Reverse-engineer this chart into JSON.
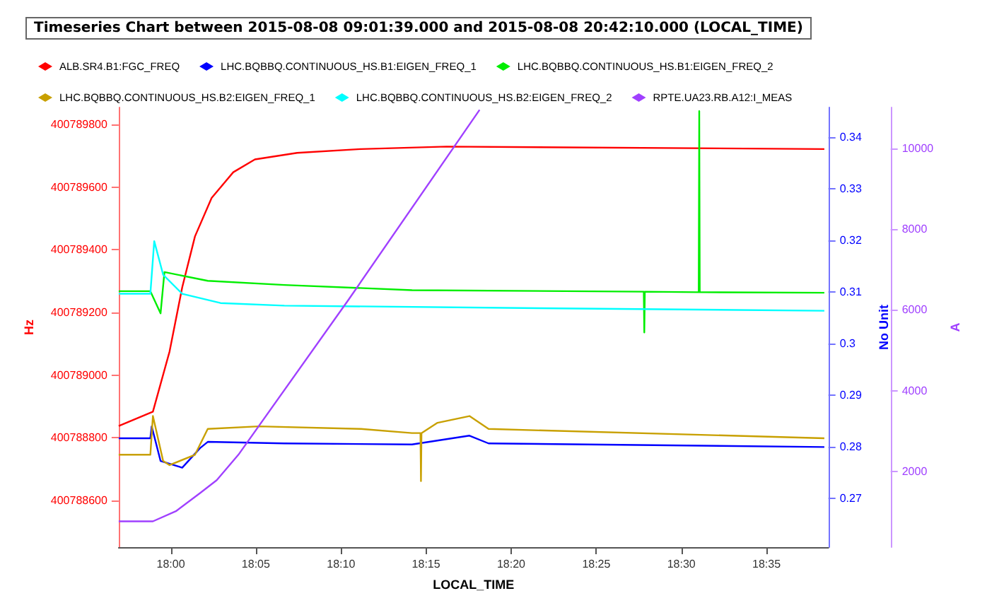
{
  "chart_data": {
    "type": "line",
    "title": "Timeseries Chart between 2015-08-08 09:01:39.000 and 2015-08-08 20:42:10.000 (LOCAL_TIME)",
    "xlabel": "LOCAL_TIME",
    "ylabel": "Hz",
    "y2label": "No Unit",
    "y3label": "A",
    "xlim": [
      17.949,
      18.644
    ],
    "xticks": [
      {
        "value": 18,
        "label": "18:00"
      },
      {
        "value": 18.0833,
        "label": "18:05"
      },
      {
        "value": 18.1667,
        "label": "18:10"
      },
      {
        "value": 18.25,
        "label": "18:15"
      },
      {
        "value": 18.3333,
        "label": "18:20"
      },
      {
        "value": 18.4167,
        "label": "18:25"
      },
      {
        "value": 18.5,
        "label": "18:30"
      },
      {
        "value": 18.5833,
        "label": "18:35"
      }
    ],
    "ylim": [
      400788450,
      400789855
    ],
    "yticks": [
      400788600,
      400788800,
      400789000,
      400789200,
      400789400,
      400789600,
      400789800
    ],
    "y2lim": [
      0.2605,
      0.3457
    ],
    "y2ticks": [
      0.27,
      0.28,
      0.29,
      0.3,
      0.31,
      0.32,
      0.33,
      0.34
    ],
    "y3lim": [
      120,
      11020
    ],
    "y3ticks": [
      2000,
      4000,
      6000,
      8000,
      10000
    ],
    "grid": false,
    "legend": "top",
    "marker": "none",
    "line_style": "solid",
    "series": [
      {
        "name": "ALB.SR4.B1:FGC_FREQ",
        "color": "#ff0000",
        "axis": "y",
        "x": [
          17.949,
          17.9825,
          17.9988,
          18.0112,
          18.0237,
          18.04,
          18.0612,
          18.0824,
          18.1237,
          18.1862,
          18.27,
          18.64
        ],
        "values": [
          400788837,
          400788883,
          400789075,
          400789280,
          400789443,
          400789566,
          400789648,
          400789689,
          400789710,
          400789722,
          400789730,
          400789722
        ]
      },
      {
        "name": "LHC.BQBBQ.CONTINUOUS_HS.B1:EIGEN_FREQ_1",
        "color": "#0000ff",
        "axis": "y2",
        "x": [
          17.949,
          17.98,
          17.9813,
          17.99,
          18.0112,
          18.0287,
          18.0362,
          18.1112,
          18.2362,
          18.2925,
          18.3112,
          18.64
        ],
        "values": [
          0.2816,
          0.2816,
          0.2839,
          0.2772,
          0.2759,
          0.2797,
          0.2809,
          0.2806,
          0.2804,
          0.2821,
          0.2806,
          0.2799
        ]
      },
      {
        "name": "LHC.BQBBQ.CONTINUOUS_HS.B1:EIGEN_FREQ_2",
        "color": "#00ee00",
        "axis": "y2",
        "x": [
          17.949,
          17.98,
          17.99,
          17.9938,
          18.0362,
          18.1112,
          18.2362,
          18.4632,
          18.4637,
          18.4642,
          18.517,
          18.5175,
          18.518,
          18.64
        ],
        "values": [
          0.3101,
          0.3101,
          0.3058,
          0.3138,
          0.3121,
          0.3113,
          0.3103,
          0.31,
          0.3021,
          0.31,
          0.3099,
          0.345,
          0.3099,
          0.3098
        ]
      },
      {
        "name": "LHC.BQBBQ.CONTINUOUS_HS.B2:EIGEN_FREQ_1",
        "color": "#c8a000",
        "axis": "y2",
        "x": [
          17.949,
          17.98,
          17.9825,
          17.9925,
          17.9988,
          18.0237,
          18.0362,
          18.0862,
          18.1862,
          18.2362,
          18.2445,
          18.245,
          18.2455,
          18.2612,
          18.2925,
          18.3112,
          18.64
        ],
        "values": [
          0.2784,
          0.2784,
          0.2859,
          0.2772,
          0.2764,
          0.2784,
          0.2834,
          0.2839,
          0.2834,
          0.2826,
          0.2826,
          0.2733,
          0.2826,
          0.2846,
          0.2859,
          0.2834,
          0.2816
        ]
      },
      {
        "name": "LHC.BQBBQ.CONTINUOUS_HS.B2:EIGEN_FREQ_2",
        "color": "#00ffff",
        "axis": "y2",
        "x": [
          17.949,
          17.98,
          17.9838,
          17.9925,
          18.0112,
          18.0487,
          18.1112,
          18.3612,
          18.64
        ],
        "values": [
          0.3096,
          0.3096,
          0.3198,
          0.3133,
          0.3096,
          0.3078,
          0.3073,
          0.3068,
          0.3063
        ]
      },
      {
        "name": "RPTE.UA23.RB.A12:I_MEAS",
        "color": "#a040ff",
        "axis": "y3",
        "x": [
          17.949,
          17.9825,
          18.005,
          18.0287,
          18.045,
          18.0662,
          18.1737,
          18.3024
        ],
        "values": [
          760,
          760,
          1010,
          1460,
          1780,
          2410,
          6240,
          10960
        ]
      }
    ]
  }
}
